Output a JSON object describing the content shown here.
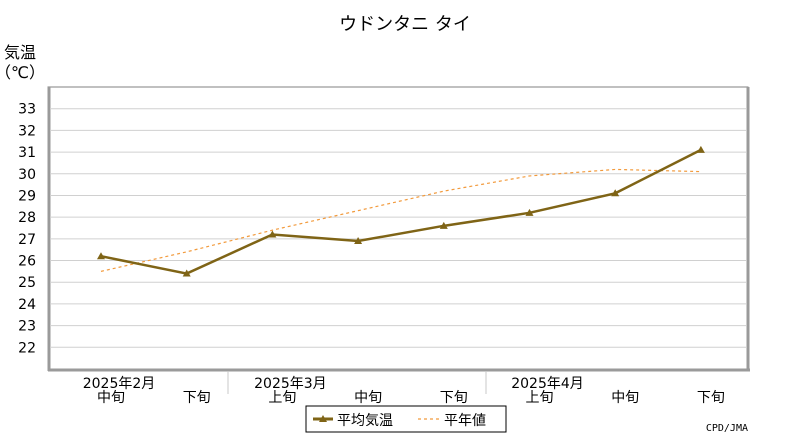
{
  "chart_data": {
    "type": "line",
    "title": "ウドンタニ タイ",
    "ylabel": "気温",
    "yunit": "（℃）",
    "ylim": [
      21,
      34
    ],
    "yticks": [
      22,
      23,
      24,
      25,
      26,
      27,
      28,
      29,
      30,
      31,
      32,
      33
    ],
    "grid": true,
    "categories": [
      "中旬",
      "下旬",
      "上旬",
      "中旬",
      "下旬",
      "上旬",
      "中旬",
      "下旬"
    ],
    "months": [
      {
        "label": "2025年2月",
        "start": 0
      },
      {
        "label": "2025年3月",
        "start": 2
      },
      {
        "label": "2025年4月",
        "start": 5
      }
    ],
    "series": [
      {
        "name": "平均気温",
        "values": [
          26.2,
          25.4,
          27.2,
          26.9,
          27.6,
          28.2,
          29.1,
          31.1
        ],
        "color": "#7f6416"
      },
      {
        "name": "平年値",
        "values": [
          25.5,
          26.4,
          27.4,
          28.3,
          29.2,
          29.9,
          30.2,
          30.1
        ],
        "color": "#f29a3c"
      }
    ],
    "legend_position": "bottom-center",
    "credit": "CPD/JMA"
  }
}
